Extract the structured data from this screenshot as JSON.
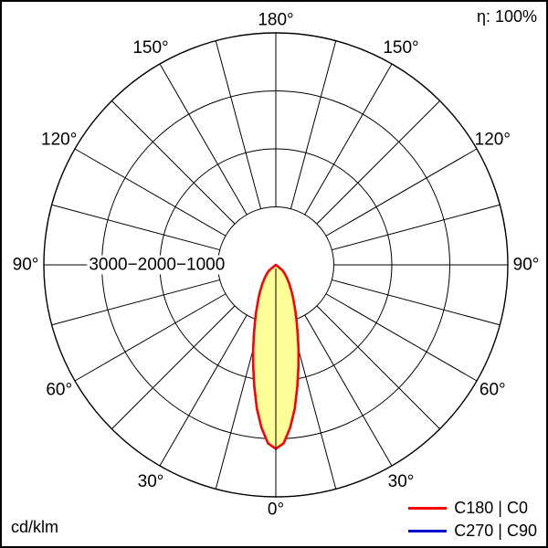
{
  "header": {
    "efficiency": "η: 100%"
  },
  "footer": {
    "unit": "cd/klm"
  },
  "legend": [
    {
      "label": "C180 | C0",
      "color": "#ff0000"
    },
    {
      "label": "C270 | C90",
      "color": "#0000cc"
    }
  ],
  "chart_data": {
    "type": "polar_line",
    "unit": "cd/klm",
    "ring_values": [
      1000,
      2000,
      3000
    ],
    "ring_max": 4000,
    "axis_label_text": "3000−2000−1000",
    "angle_step_deg": 15,
    "angle_label_deg": [
      0,
      30,
      60,
      90,
      120,
      150,
      180
    ],
    "angle_labels": [
      "0°",
      "30°",
      "60°",
      "90°",
      "120°",
      "150°",
      "180°"
    ],
    "series": [
      {
        "name": "C180 | C0",
        "color": "#ff0000",
        "fill": "#ffff99",
        "gamma_deg": [
          0,
          2.5,
          5,
          7.5,
          10,
          12.5,
          15,
          17.5,
          20,
          22.5,
          25,
          27.5,
          30,
          35,
          40,
          45,
          50,
          55,
          60,
          75,
          90
        ],
        "intensity": [
          3170,
          3080,
          2820,
          2500,
          2130,
          1800,
          1510,
          1250,
          1050,
          890,
          750,
          640,
          550,
          410,
          300,
          220,
          150,
          0,
          0,
          0,
          0
        ]
      },
      {
        "name": "C270 | C90",
        "color": "#0000cc",
        "fill": "none",
        "note": "coincides with C180 | C0 curve",
        "gamma_deg": [
          0,
          2.5,
          5,
          7.5,
          10,
          12.5,
          15,
          17.5,
          20,
          22.5,
          25,
          27.5,
          30,
          35,
          40,
          45,
          50,
          55,
          60,
          75,
          90
        ],
        "intensity": [
          3170,
          3080,
          2820,
          2500,
          2130,
          1800,
          1510,
          1250,
          1050,
          890,
          750,
          640,
          550,
          410,
          300,
          220,
          150,
          0,
          0,
          0,
          0
        ]
      }
    ]
  }
}
